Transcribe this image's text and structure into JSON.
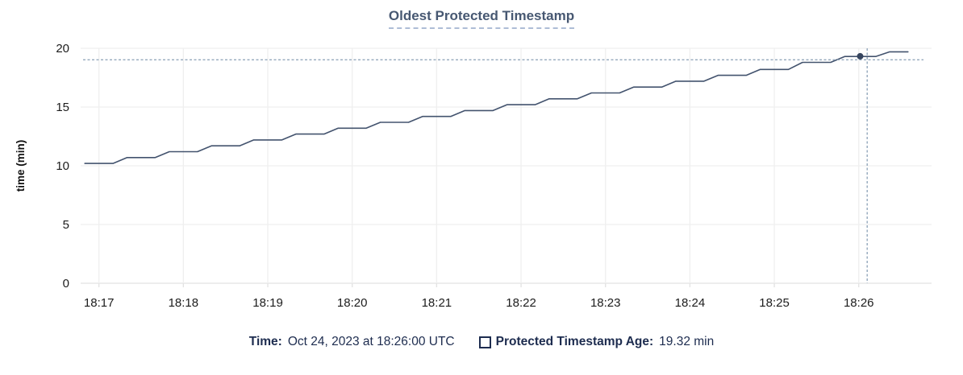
{
  "header": {
    "title": "Oldest Protected Timestamp"
  },
  "chart_data": {
    "type": "line",
    "title": "Oldest Protected Timestamp",
    "xlabel": "",
    "ylabel": "time (min)",
    "ylim": [
      0,
      20
    ],
    "yticks": [
      0,
      5,
      10,
      15,
      20
    ],
    "grid": true,
    "legend_position": "bottom",
    "x_domain_seconds": [
      -13,
      586
    ],
    "xticks": [
      {
        "label": "18:17",
        "t": 0
      },
      {
        "label": "18:18",
        "t": 60
      },
      {
        "label": "18:19",
        "t": 120
      },
      {
        "label": "18:20",
        "t": 180
      },
      {
        "label": "18:21",
        "t": 240
      },
      {
        "label": "18:22",
        "t": 300
      },
      {
        "label": "18:23",
        "t": 360
      },
      {
        "label": "18:24",
        "t": 420
      },
      {
        "label": "18:25",
        "t": 480
      },
      {
        "label": "18:26",
        "t": 540
      }
    ],
    "series": [
      {
        "name": "Protected Timestamp Age",
        "points": [
          [
            -10,
            10.2
          ],
          [
            10,
            10.2
          ],
          [
            20,
            10.7
          ],
          [
            40,
            10.7
          ],
          [
            50,
            11.2
          ],
          [
            70,
            11.2
          ],
          [
            80,
            11.7
          ],
          [
            100,
            11.7
          ],
          [
            110,
            12.2
          ],
          [
            130,
            12.2
          ],
          [
            140,
            12.7
          ],
          [
            160,
            12.7
          ],
          [
            170,
            13.2
          ],
          [
            190,
            13.2
          ],
          [
            200,
            13.7
          ],
          [
            220,
            13.7
          ],
          [
            230,
            14.2
          ],
          [
            250,
            14.2
          ],
          [
            260,
            14.7
          ],
          [
            280,
            14.7
          ],
          [
            290,
            15.2
          ],
          [
            310,
            15.2
          ],
          [
            320,
            15.7
          ],
          [
            340,
            15.7
          ],
          [
            350,
            16.2
          ],
          [
            370,
            16.2
          ],
          [
            380,
            16.7
          ],
          [
            400,
            16.7
          ],
          [
            410,
            17.2
          ],
          [
            430,
            17.2
          ],
          [
            440,
            17.7
          ],
          [
            460,
            17.7
          ],
          [
            470,
            18.2
          ],
          [
            490,
            18.2
          ],
          [
            500,
            18.8
          ],
          [
            520,
            18.8
          ],
          [
            530,
            19.3
          ],
          [
            552,
            19.3
          ],
          [
            562,
            19.7
          ],
          [
            575,
            19.7
          ]
        ]
      }
    ],
    "crosshair": {
      "x_seconds": 546,
      "y_value": 19.02
    },
    "highlight_point": {
      "x_seconds": 541,
      "y_value": 19.32,
      "time_label": "18:26:00",
      "value_label": "19.32 min"
    }
  },
  "legend": {
    "time_label": "Time:",
    "time_value": "Oct 24, 2023 at 18:26:00 UTC",
    "series_label": "Protected Timestamp Age:",
    "series_value": "19.32 min"
  },
  "colors": {
    "title": "#475872",
    "title_underline": "#aebdd6",
    "axis_text": "#1c1c1c",
    "grid": "#efefef",
    "axis_line": "#e2e2e2",
    "series_line": "#43536e",
    "highlight_dot": "#36455f",
    "crosshair": "#94a8bc",
    "legend_text": "#1d2c4f"
  }
}
